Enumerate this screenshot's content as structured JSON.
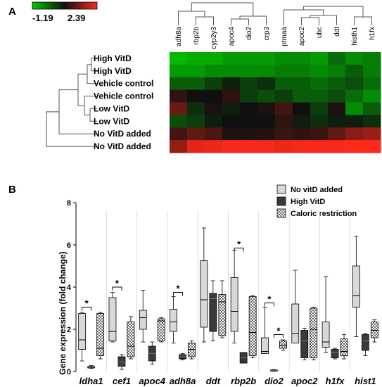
{
  "panel_a": {
    "label": "A",
    "colorbar": {
      "min_label": "-1.19",
      "max_label": "2.39",
      "low_color": "#00c800",
      "mid_color": "#101010",
      "high_color": "#ff2a1a"
    },
    "chart_data": {
      "type": "heatmap",
      "columns": [
        "adh8a",
        "rbp2b",
        "cyp2y3",
        "apoc4",
        "dio2",
        "crp3",
        "ptmaa",
        "apoc2",
        "ubc",
        "ddt",
        "histh1",
        "h1fx"
      ],
      "rows": [
        "High VitD",
        "High VitD",
        "Vehicle control",
        "Vehicle control",
        "Low VitD",
        "Low VitD",
        "No VitD added",
        "No VitD added"
      ],
      "range": [
        -1.19,
        2.39
      ],
      "values": [
        [
          -1.1,
          -1.0,
          -1.0,
          -0.9,
          -0.9,
          -0.9,
          -0.8,
          -0.8,
          -0.9,
          -0.6,
          -0.8,
          -0.7
        ],
        [
          -0.9,
          -0.9,
          -0.8,
          -0.8,
          -0.8,
          -0.8,
          -0.7,
          -0.7,
          -0.8,
          -0.7,
          -0.5,
          -0.7
        ],
        [
          -0.5,
          -0.5,
          -0.3,
          -0.1,
          -0.3,
          -0.2,
          -0.5,
          -0.5,
          -0.6,
          -0.5,
          -0.4,
          -0.6
        ],
        [
          0.3,
          0.0,
          0.0,
          0.3,
          -0.3,
          -0.4,
          -0.3,
          -0.5,
          -0.5,
          -0.4,
          -0.6,
          -0.8
        ],
        [
          0.9,
          -0.2,
          0.1,
          -0.1,
          0.0,
          0.1,
          0.5,
          0.0,
          -0.3,
          0.1,
          -0.8,
          -0.5
        ],
        [
          -0.4,
          -0.3,
          -0.1,
          0.0,
          0.0,
          0.0,
          0.3,
          -0.1,
          -0.2,
          -0.1,
          -0.1,
          -0.2
        ],
        [
          0.5,
          0.8,
          0.6,
          0.1,
          0.1,
          0.2,
          0.4,
          0.3,
          0.4,
          0.8,
          1.2,
          1.4
        ],
        [
          1.3,
          2.1,
          2.2,
          2.3,
          2.3,
          2.3,
          2.2,
          2.3,
          2.3,
          2.3,
          2.4,
          2.4
        ]
      ]
    }
  },
  "panel_b": {
    "label": "B",
    "legend": [
      {
        "name": "No vitD added",
        "fill": "#d8d8d8"
      },
      {
        "name": "High VitD",
        "fill": "#3a3a3a"
      },
      {
        "name": "Caloric restriction",
        "fill": "pattern"
      }
    ],
    "chart_data": {
      "type": "box",
      "ylabel": "Gene expression (fold change)",
      "ylim": [
        0,
        8
      ],
      "yticks": [
        0,
        2,
        4,
        6,
        8
      ],
      "categories": [
        "ldha1",
        "cef1",
        "apoc4",
        "adh8a",
        "ddt",
        "rbp2b",
        "dio2",
        "apoc2",
        "h1fx",
        "hist1"
      ],
      "series": [
        {
          "name": "No vitD added",
          "boxes": [
            {
              "min": 0.5,
              "q1": 1.05,
              "median": 1.5,
              "q3": 2.75,
              "max": 2.8
            },
            {
              "min": 1.4,
              "q1": 1.45,
              "median": 1.9,
              "q3": 3.5,
              "max": 3.75
            },
            {
              "min": 1.4,
              "q1": 2.0,
              "median": 2.55,
              "q3": 2.9,
              "max": 3.85
            },
            {
              "min": 1.35,
              "q1": 1.9,
              "median": 2.35,
              "q3": 2.95,
              "max": 3.55
            },
            {
              "min": 1.4,
              "q1": 2.1,
              "median": 3.4,
              "q3": 5.25,
              "max": 6.8
            },
            {
              "min": 1.35,
              "q1": 1.9,
              "median": 2.85,
              "q3": 4.45,
              "max": 5.75
            },
            {
              "min": 0.85,
              "q1": 0.85,
              "median": 0.95,
              "q3": 1.6,
              "max": 3.05
            },
            {
              "min": 1.35,
              "q1": 1.35,
              "median": 1.8,
              "q3": 3.2,
              "max": 4.8
            },
            {
              "min": 0.9,
              "q1": 1.15,
              "median": 1.4,
              "q3": 2.35,
              "max": 4.5
            },
            {
              "min": 1.65,
              "q1": 3.05,
              "median": 3.6,
              "q3": 5.0,
              "max": 6.4
            }
          ]
        },
        {
          "name": "High VitD",
          "boxes": [
            {
              "min": 0.15,
              "q1": 0.17,
              "median": 0.2,
              "q3": 0.24,
              "max": 0.28
            },
            {
              "min": 0.1,
              "q1": 0.25,
              "median": 0.45,
              "q3": 0.7,
              "max": 0.8
            },
            {
              "min": 0.35,
              "q1": 0.5,
              "median": 0.85,
              "q3": 1.2,
              "max": 1.4
            },
            {
              "min": 0.55,
              "q1": 0.6,
              "median": 0.7,
              "q3": 0.8,
              "max": 0.85
            },
            {
              "min": 1.45,
              "q1": 1.9,
              "median": 3.45,
              "q3": 3.7,
              "max": 4.3
            },
            {
              "min": 0.4,
              "q1": 0.4,
              "median": 0.65,
              "q3": 0.9,
              "max": 0.9
            },
            {
              "min": 0.01,
              "q1": 0.02,
              "median": 0.04,
              "q3": 0.07,
              "max": 0.09
            },
            {
              "min": 0.55,
              "q1": 0.65,
              "median": 1.45,
              "q3": 1.95,
              "max": 2.05
            },
            {
              "min": 0.6,
              "q1": 0.65,
              "median": 0.9,
              "q3": 1.05,
              "max": 1.1
            },
            {
              "min": 0.75,
              "q1": 1.0,
              "median": 1.45,
              "q3": 1.75,
              "max": 1.8
            }
          ]
        },
        {
          "name": "Caloric restriction",
          "boxes": [
            {
              "min": 0.6,
              "q1": 0.75,
              "median": 1.1,
              "q3": 2.75,
              "max": 2.8
            },
            {
              "min": 0.6,
              "q1": 0.7,
              "median": 1.2,
              "q3": 2.35,
              "max": 2.6
            },
            {
              "min": 1.4,
              "q1": 1.45,
              "median": 2.4,
              "q3": 2.5,
              "max": 2.55
            },
            {
              "min": 0.6,
              "q1": 0.7,
              "median": 1.05,
              "q3": 1.35,
              "max": 1.45
            },
            {
              "min": 1.6,
              "q1": 1.7,
              "median": 3.3,
              "q3": 3.65,
              "max": 4.3
            },
            {
              "min": 0.65,
              "q1": 0.75,
              "median": 1.85,
              "q3": 3.55,
              "max": 3.6
            },
            {
              "min": 1.0,
              "q1": 1.1,
              "median": 1.25,
              "q3": 1.45,
              "max": 1.5
            },
            {
              "min": 0.55,
              "q1": 0.65,
              "median": 2.0,
              "q3": 3.0,
              "max": 3.05
            },
            {
              "min": 0.6,
              "q1": 0.75,
              "median": 0.95,
              "q3": 1.55,
              "max": 1.75
            },
            {
              "min": 1.4,
              "q1": 1.6,
              "median": 1.95,
              "q3": 2.35,
              "max": 2.45
            }
          ]
        }
      ],
      "significance": [
        {
          "category": "ldha1",
          "from": "No vitD added",
          "to": "High VitD",
          "y": 3.05,
          "label": "*"
        },
        {
          "category": "cef1",
          "from": "No vitD added",
          "to": "High VitD",
          "y": 4.0,
          "label": "*"
        },
        {
          "category": "adh8a",
          "from": "No vitD added",
          "to": "High VitD",
          "y": 3.75,
          "label": "*"
        },
        {
          "category": "rbp2b",
          "from": "No vitD added",
          "to": "High VitD",
          "y": 5.85,
          "label": "*"
        },
        {
          "category": "dio2",
          "from": "No vitD added",
          "to": "High VitD",
          "y": 3.25,
          "label": "*"
        },
        {
          "category": "dio2",
          "from": "High VitD",
          "to": "Caloric restriction",
          "y": 1.75,
          "label": "*"
        }
      ]
    }
  }
}
